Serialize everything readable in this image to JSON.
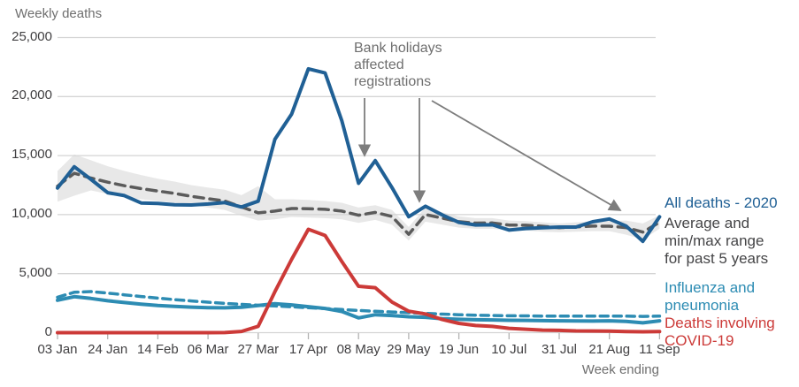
{
  "page": {
    "title": "Weekly deaths",
    "x_axis_label": "Week ending"
  },
  "annotation": {
    "text": "Bank holidays\naffected\nregistrations"
  },
  "legend": {
    "all_deaths": {
      "label": "All deaths - 2020",
      "color": "#206095"
    },
    "average": {
      "label": "Average and\nmin/max range\nfor past 5 years",
      "color": "#454547"
    },
    "influenza": {
      "label": "Influenza and\npneumonia",
      "color": "#2d8cb3"
    },
    "covid": {
      "label": "Deaths involving\nCOVID-19",
      "color": "#cc3a38"
    }
  },
  "colors": {
    "all_deaths_line": "#206095",
    "average_line": "#5b5b5b",
    "range_band": "#e8e8e8",
    "influenza_line": "#2d8cb3",
    "covid_line": "#cc3a38",
    "gridline": "#d4d4d4",
    "tick": "#b3b3b3",
    "arrow": "#7d7d7d",
    "axis_text": "#414042",
    "muted_text": "#6f6f6f"
  },
  "chart_data": {
    "type": "line",
    "title": "Weekly deaths",
    "xlabel": "Week ending",
    "ylabel": "",
    "ylim": [
      0,
      25000
    ],
    "grid": "horizontal",
    "legend_position": "right",
    "weeks": 37,
    "y_ticks": {
      "values": [
        0,
        5000,
        10000,
        15000,
        20000,
        25000
      ],
      "labels": [
        "0",
        "5,000",
        "10,000",
        "15,000",
        "20,000",
        "25,000"
      ]
    },
    "x_ticks": {
      "labels": [
        "03 Jan",
        "24 Jan",
        "14 Feb",
        "06 Mar",
        "27 Mar",
        "17 Apr",
        "08 May",
        "29 May",
        "19 Jun",
        "10 Jul",
        "31 Jul",
        "21 Aug",
        "11 Sep"
      ],
      "week_index": [
        0,
        3,
        6,
        9,
        12,
        15,
        18,
        21,
        24,
        27,
        30,
        33,
        36
      ]
    },
    "series": [
      {
        "key": "all_deaths_2020",
        "name": "All deaths - 2020",
        "style": "solid",
        "color": "#206095",
        "width": 4,
        "values": [
          12254,
          14058,
          12990,
          11856,
          11612,
          10986,
          10944,
          10841,
          10816,
          10895,
          11019,
          10645,
          11141,
          16387,
          18516,
          22351,
          21997,
          17953,
          12657,
          14573,
          12288,
          9824,
          10709,
          9976,
          9339,
          9126,
          9140,
          8690,
          8823,
          8891,
          8946,
          8945,
          9392,
          9631,
          9032,
          7739,
          9811
        ]
      },
      {
        "key": "five_year_average",
        "name": "Average for past 5 years",
        "style": "dashed",
        "color": "#5b5b5b",
        "width": 3.5,
        "dash": "11 7",
        "values": [
          12400,
          13500,
          13100,
          12750,
          12450,
          12200,
          12000,
          11800,
          11550,
          11350,
          11150,
          10650,
          10150,
          10300,
          10520,
          10500,
          10450,
          10300,
          9950,
          10190,
          9840,
          8330,
          10010,
          9700,
          9400,
          9280,
          9300,
          9120,
          9100,
          9010,
          8890,
          8960,
          9030,
          9020,
          8900,
          8520,
          9350
        ]
      },
      {
        "key": "five_year_range",
        "name": "Min/max range for past 5 years",
        "style": "band",
        "color": "#e8e8e8",
        "max": [
          13700,
          15100,
          14600,
          14100,
          13700,
          13350,
          13050,
          12800,
          12500,
          12300,
          12100,
          11650,
          12400,
          11300,
          11300,
          11250,
          11150,
          11000,
          10600,
          10800,
          10400,
          8950,
          10600,
          10200,
          9850,
          9700,
          9700,
          9500,
          9450,
          9350,
          9250,
          9350,
          9400,
          9450,
          9500,
          9250,
          9950
        ],
        "min": [
          11100,
          11600,
          12050,
          11750,
          11500,
          11300,
          11150,
          11000,
          10800,
          10600,
          10400,
          9900,
          9500,
          9600,
          9800,
          9750,
          9700,
          9600,
          9300,
          9550,
          9150,
          7800,
          9400,
          9150,
          8900,
          8800,
          8800,
          8650,
          8650,
          8550,
          8500,
          8550,
          8600,
          8600,
          8300,
          7900,
          8800
        ]
      },
      {
        "key": "influenza_pneumonia_2020",
        "name": "Influenza and pneumonia - 2020",
        "style": "solid",
        "color": "#2d8cb3",
        "width": 4,
        "values": [
          2750,
          3050,
          2900,
          2700,
          2550,
          2420,
          2300,
          2220,
          2160,
          2120,
          2100,
          2150,
          2300,
          2450,
          2350,
          2200,
          2050,
          1800,
          1250,
          1520,
          1450,
          1350,
          1300,
          1180,
          1130,
          1090,
          1080,
          1050,
          1040,
          1020,
          1000,
          990,
          980,
          1000,
          960,
          830,
          1000
        ]
      },
      {
        "key": "influenza_pneumonia_average",
        "name": "Influenza and pneumonia - average for past 5 years",
        "style": "dashed",
        "color": "#2d8cb3",
        "width": 3.5,
        "dash": "9 6",
        "values": [
          3000,
          3420,
          3480,
          3350,
          3200,
          3060,
          2930,
          2800,
          2690,
          2580,
          2480,
          2400,
          2320,
          2260,
          2190,
          2110,
          2040,
          1960,
          1880,
          1810,
          1750,
          1690,
          1630,
          1570,
          1520,
          1480,
          1450,
          1430,
          1420,
          1410,
          1400,
          1400,
          1400,
          1410,
          1400,
          1380,
          1400
        ]
      },
      {
        "key": "covid_19_deaths",
        "name": "Deaths involving COVID-19",
        "style": "solid",
        "color": "#cc3a38",
        "width": 4,
        "values": [
          0,
          0,
          0,
          0,
          0,
          0,
          0,
          0,
          0,
          0,
          5,
          103,
          539,
          3475,
          6213,
          8758,
          8237,
          6035,
          3930,
          3810,
          2589,
          1822,
          1588,
          1114,
          783,
          606,
          532,
          366,
          295,
          217,
          193,
          152,
          139,
          138,
          101,
          78,
          99
        ]
      }
    ]
  }
}
